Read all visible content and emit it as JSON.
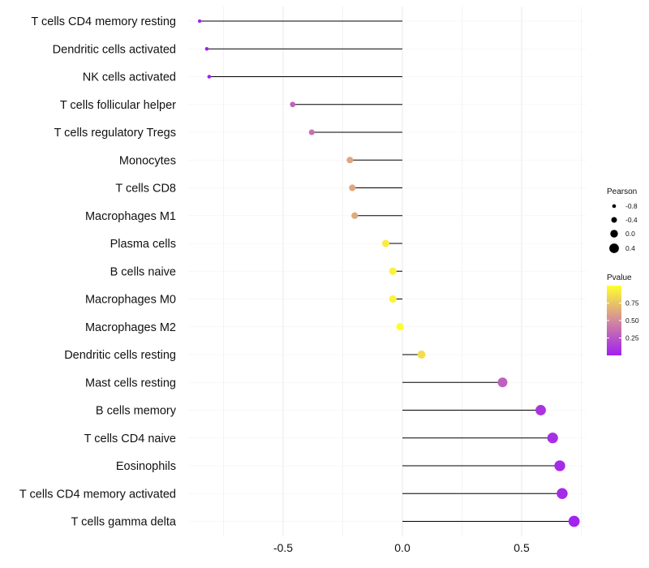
{
  "chart_data": {
    "type": "lollipop",
    "title": "",
    "xlabel": "",
    "ylabel": "",
    "xlim": [
      -0.9,
      0.76
    ],
    "x_ticks": [
      -0.5,
      0.0,
      0.5
    ],
    "x_tick_labels": [
      "-0.5",
      "0.0",
      "0.5"
    ],
    "grid": true,
    "baseline": 0,
    "categories": [
      "T cells CD4 memory resting",
      "Dendritic cells activated",
      "NK cells activated",
      "T cells follicular helper",
      "T cells regulatory  Tregs",
      "Monocytes",
      "T cells CD8",
      "Macrophages M1",
      "Plasma cells",
      "B cells naive",
      "Macrophages M0",
      "Macrophages M2",
      "Dendritic cells resting",
      "Mast cells resting",
      "B cells memory",
      "T cells CD4 naive",
      "Eosinophils",
      "T cells CD4 memory activated",
      "T cells gamma delta"
    ],
    "pearson": [
      -0.85,
      -0.82,
      -0.81,
      -0.46,
      -0.38,
      -0.22,
      -0.21,
      -0.2,
      -0.07,
      -0.04,
      -0.04,
      -0.01,
      0.08,
      0.42,
      0.58,
      0.63,
      0.66,
      0.67,
      0.72
    ],
    "pvalue": [
      0.0,
      0.0,
      0.0,
      0.3,
      0.38,
      0.62,
      0.63,
      0.64,
      0.92,
      0.95,
      0.95,
      0.99,
      0.85,
      0.3,
      0.1,
      0.07,
      0.05,
      0.05,
      0.02
    ],
    "legend_size": {
      "title": "Pearson",
      "labels": [
        "-0.8",
        "-0.4",
        "0.0",
        "0.4"
      ],
      "values": [
        -0.8,
        -0.4,
        0.0,
        0.4
      ]
    },
    "legend_color": {
      "title": "Pvalue",
      "labels": [
        "0.75",
        "0.50",
        "0.25"
      ],
      "values": [
        0.75,
        0.5,
        0.25
      ],
      "range": [
        0.0,
        1.0
      ],
      "low_color": "#a020f0",
      "mid_color": "#d38a9c",
      "high_color": "#ffff2e"
    },
    "line_color": "#000000",
    "grid_color": "#ebebeb",
    "position": "legend-right"
  }
}
